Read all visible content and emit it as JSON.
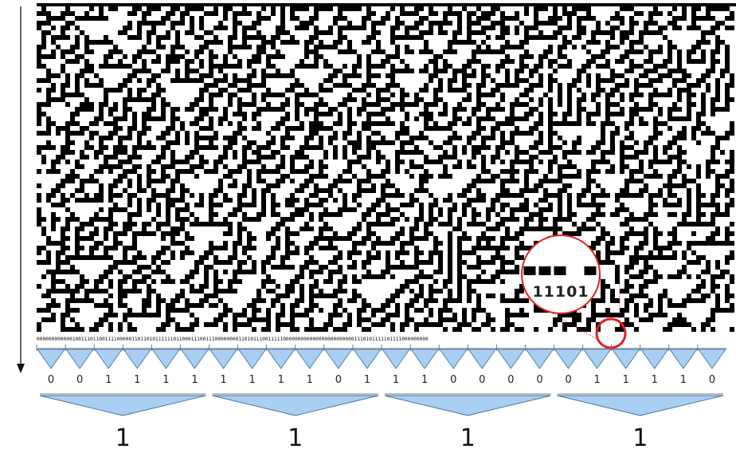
{
  "automaton": {
    "rule_description": "",
    "bit_row_top": "000000000000100111011001111000001101101011111101100011100111000000001101011100111110000000000000000000000001110101111101111000000000",
    "colors": {
      "cell": "#000000",
      "background": "#ffffff",
      "triangle": "#a9cff3",
      "triangle_stroke": "#3a6fa0",
      "highlight": "#e02020"
    }
  },
  "level1_bits": [
    "0",
    "0",
    "1",
    "1",
    "1",
    "1",
    "1",
    "1",
    "1",
    "1",
    "0",
    "1",
    "1",
    "1",
    "0",
    "0",
    "0",
    "0",
    "0",
    "1",
    "1",
    "1",
    "1",
    "0"
  ],
  "level2_bits": [
    "1",
    "1",
    "1",
    "1"
  ],
  "zoom": {
    "pattern": "11101",
    "cells": [
      true,
      true,
      true,
      false,
      true
    ]
  },
  "icons": {
    "time_arrow": "down-arrow-icon"
  }
}
